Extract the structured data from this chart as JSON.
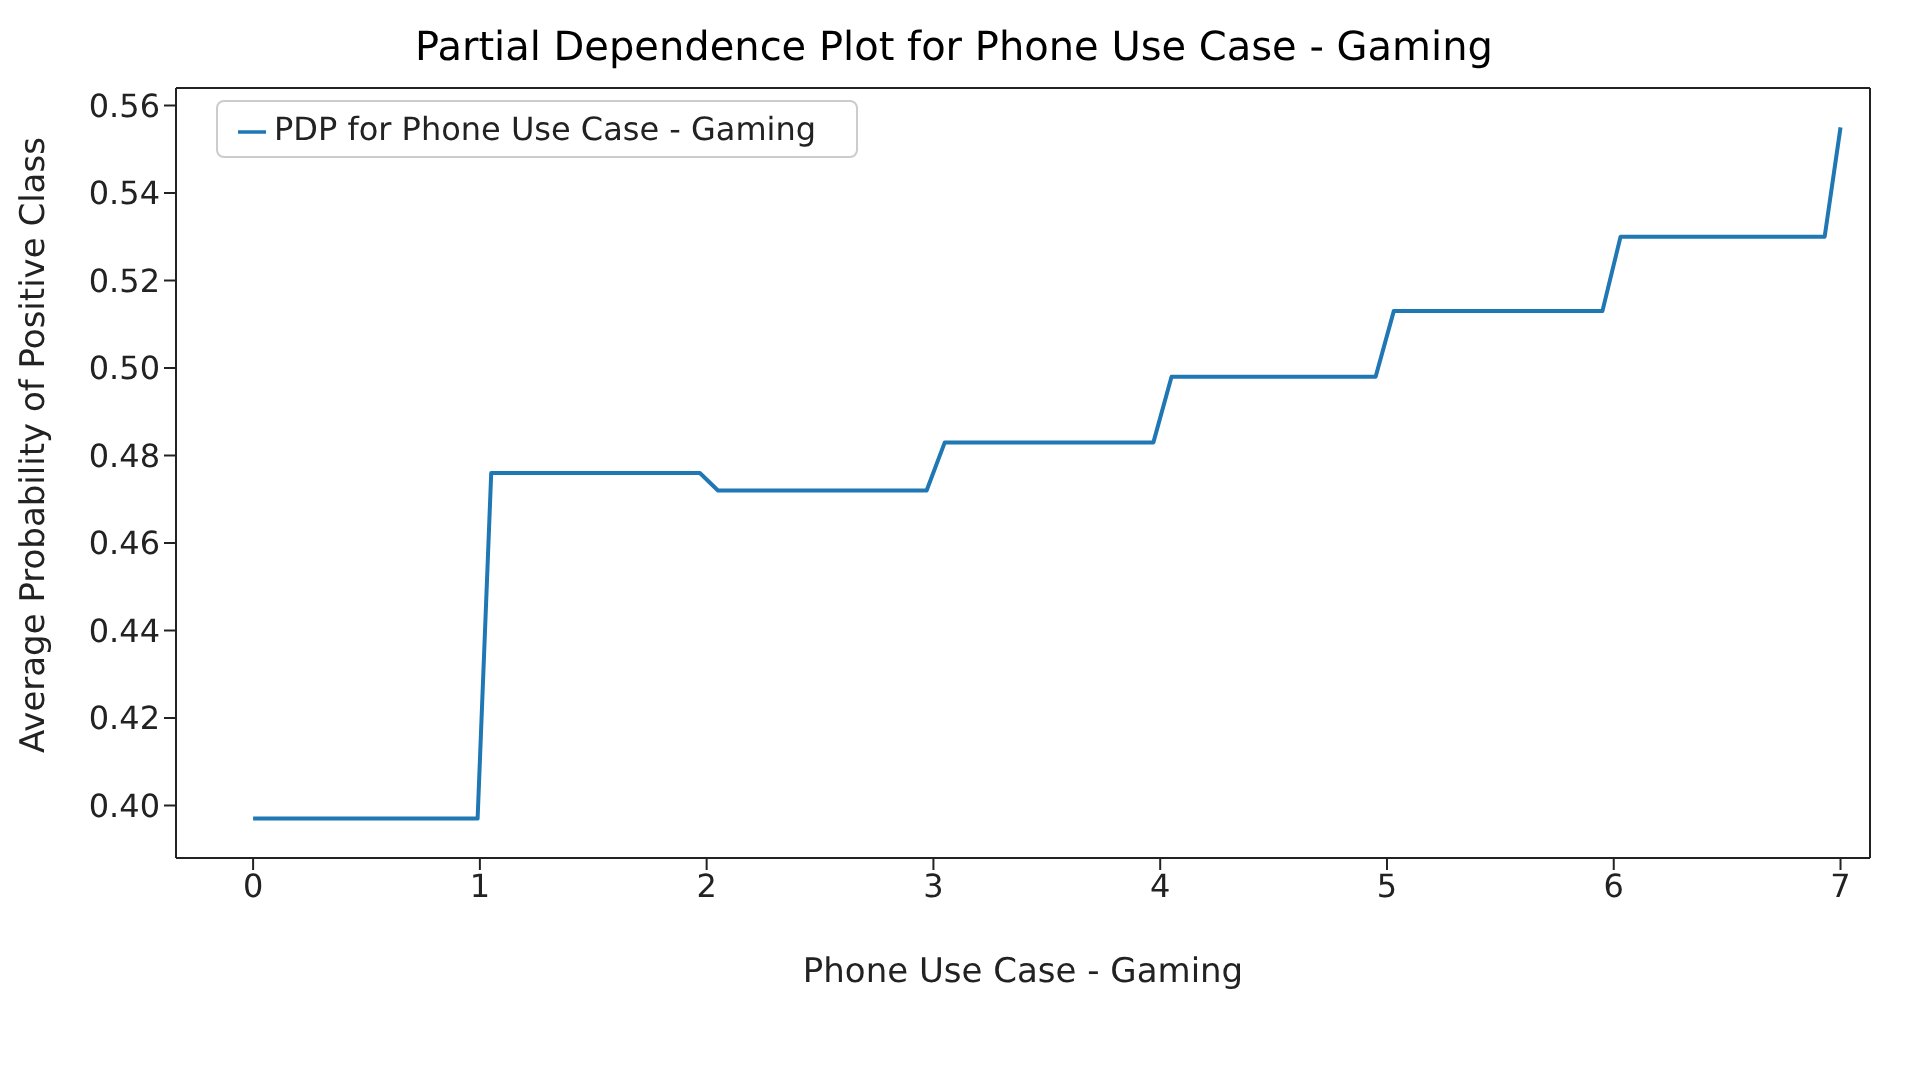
{
  "chart_data": {
    "type": "line",
    "title": "Partial Dependence Plot for Phone Use Case - Gaming",
    "xlabel": "Phone Use Case - Gaming",
    "ylabel": "Average Probability of Positive Class",
    "series": [
      {
        "name": "PDP for Phone Use Case - Gaming",
        "color": "#1f77b4",
        "x": [
          0,
          0.99,
          1.05,
          1.97,
          2.05,
          2.97,
          3.05,
          3.97,
          4.05,
          4.95,
          5.03,
          5.95,
          6.03,
          6.93,
          7
        ],
        "values": [
          0.397,
          0.397,
          0.476,
          0.476,
          0.472,
          0.472,
          0.483,
          0.483,
          0.498,
          0.498,
          0.513,
          0.513,
          0.53,
          0.53,
          0.555
        ]
      }
    ],
    "xlim": [
      -0.34,
      7.13
    ],
    "xticks": [
      0,
      1,
      2,
      3,
      4,
      5,
      6,
      7
    ],
    "ylim": [
      0.388,
      0.564
    ],
    "yticks": [
      {
        "value": 0.4,
        "label": "0.40"
      },
      {
        "value": 0.42,
        "label": "0.42"
      },
      {
        "value": 0.44,
        "label": "0.44"
      },
      {
        "value": 0.46,
        "label": "0.46"
      },
      {
        "value": 0.48,
        "label": "0.48"
      },
      {
        "value": 0.5,
        "label": "0.50"
      },
      {
        "value": 0.52,
        "label": "0.52"
      },
      {
        "value": 0.54,
        "label": "0.54"
      },
      {
        "value": 0.56,
        "label": "0.56"
      }
    ],
    "grid": false,
    "legend": "top left",
    "marker": "none",
    "line_style": "solid"
  }
}
